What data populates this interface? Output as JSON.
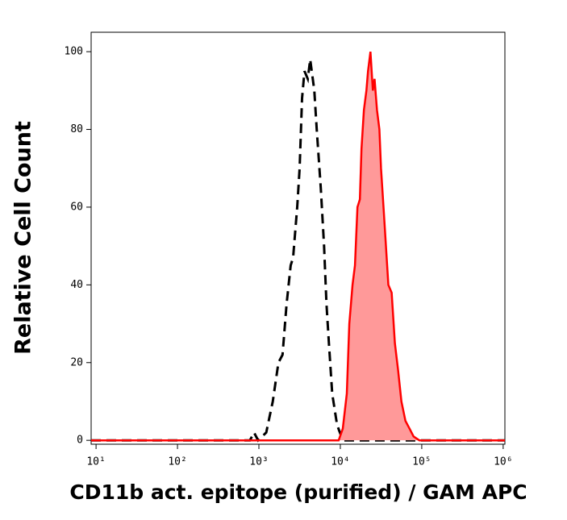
{
  "chart_data": {
    "type": "line",
    "x_label": "CD11b act. epitope (purified) / GAM APC",
    "y_label": "Relative Cell Count",
    "log_x": true,
    "xlim": [
      8.7,
      1050000
    ],
    "xticks": [
      {
        "value": 10,
        "label": "10¹"
      },
      {
        "value": 100,
        "label": "10²"
      },
      {
        "value": 1000,
        "label": "10³"
      },
      {
        "value": 10000,
        "label": "10⁴"
      },
      {
        "value": 100000,
        "label": "10⁵"
      },
      {
        "value": 1000000,
        "label": "10⁶"
      }
    ],
    "ylim": [
      -1,
      105
    ],
    "yticks": [
      0,
      20,
      40,
      60,
      80,
      100
    ],
    "series": [
      {
        "color": "#000000",
        "style": "dashed",
        "x": [
          8.7,
          776,
          871,
          977,
          1230,
          1479,
          1738,
          1950,
          2188,
          2455,
          2630,
          2951,
          3162,
          3388,
          3631,
          3981,
          4266,
          4786,
          5129,
          5754,
          6310,
          6761,
          7244,
          7943,
          9120,
          10715,
          1050000
        ],
        "values": [
          0,
          0,
          2,
          0,
          2,
          10,
          20,
          22,
          35,
          45,
          47,
          60,
          70,
          88,
          95,
          93,
          98,
          90,
          80,
          65,
          50,
          35,
          25,
          12,
          4,
          0,
          0
        ]
      },
      {
        "color": "#ff0000",
        "fill": "#ff9999",
        "style": "filled",
        "x": [
          8.7,
          9550,
          10715,
          12023,
          12882,
          14125,
          15136,
          16218,
          17378,
          18197,
          19498,
          20893,
          21878,
          23442,
          25119,
          26303,
          28184,
          30200,
          31623,
          33884,
          36308,
          38905,
          42658,
          46774,
          51286,
          56234,
          63096,
          70795,
          79433,
          93325,
          1050000
        ],
        "values": [
          0,
          0,
          3,
          12,
          30,
          40,
          45,
          60,
          62,
          75,
          85,
          90,
          95,
          100,
          90,
          93,
          85,
          80,
          70,
          60,
          50,
          40,
          38,
          25,
          18,
          10,
          5,
          3,
          1,
          0,
          0
        ]
      }
    ]
  }
}
